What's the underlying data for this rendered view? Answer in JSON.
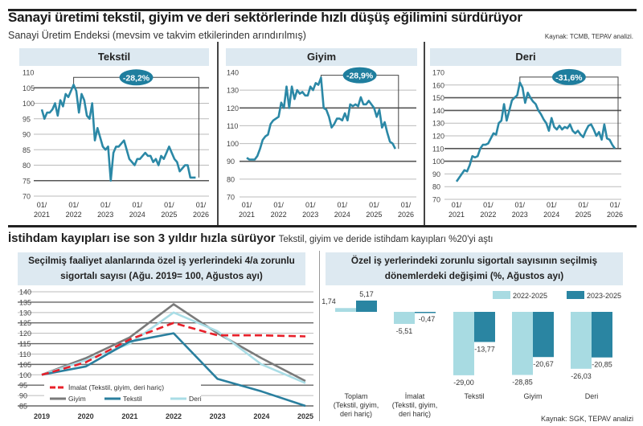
{
  "top": {
    "title": "Sanayi üretimi tekstil, giyim ve deri sektörlerinde hızlı düşüş eğilimini sürdürüyor",
    "subtitle": "Sanayi Üretim Endeksi (mevsim ve takvim etkilerinden arındırılmış)",
    "source": "Kaynak: TCMB, TEPAV analizi."
  },
  "bottom": {
    "title": "İstihdam kayıpları ise son 3 yıldır hızla sürüyor",
    "subtitle": "Tekstil, giyim ve deride istihdam kayıpları %20'yi aştı",
    "source": "Kaynak: SGK, TEPAV analizi"
  },
  "colors": {
    "line": "#2b88a6",
    "pill": "#1f7e9e",
    "light_bar": "#a8dbe2",
    "dark_bar": "#2a85a2",
    "imalat": "#e8202a",
    "giyim": "#7a7a7a",
    "tekstil": "#2a7f9e",
    "deri": "#a9dde6",
    "band": "#dde9f1"
  },
  "chart_data": [
    {
      "type": "line",
      "title": "Tekstil",
      "annotation": "-28,2%",
      "ylim": [
        70,
        110
      ],
      "yticks": [
        "110",
        "105",
        "100",
        "95",
        "90",
        "85",
        "80",
        "75",
        "70"
      ],
      "xticks": [
        [
          "01/",
          "2021"
        ],
        [
          "01/",
          "2022"
        ],
        [
          "01/",
          "2023"
        ],
        [
          "01/",
          "2024"
        ],
        [
          "01/",
          "2025"
        ],
        [
          "01/",
          "2026"
        ]
      ],
      "start": "2021-01",
      "frequency": "monthly",
      "values": [
        98,
        95,
        97,
        97,
        98,
        100,
        96,
        101,
        99,
        103,
        102,
        104,
        106,
        104,
        97,
        103,
        101,
        96,
        95,
        100,
        88,
        92,
        89,
        86,
        85,
        86,
        75,
        84,
        86,
        86,
        87,
        88,
        85,
        82,
        81,
        80,
        82,
        82,
        83,
        84,
        83,
        83,
        81,
        82,
        80,
        83,
        82,
        84,
        86,
        84,
        82,
        81,
        78,
        79,
        80,
        80,
        76,
        76,
        76
      ]
    },
    {
      "type": "line",
      "title": "Giyim",
      "annotation": "-28,9%",
      "ylim": [
        70,
        140
      ],
      "yticks": [
        "140",
        "130",
        "120",
        "110",
        "100",
        "90",
        "80",
        "70"
      ],
      "xticks": [
        [
          "01/",
          "2021"
        ],
        [
          "01/",
          "2022"
        ],
        [
          "01/",
          "2023"
        ],
        [
          "01/",
          "2024"
        ],
        [
          "01/",
          "2025"
        ],
        [
          "01/",
          "2026"
        ]
      ],
      "start": "2021-01",
      "frequency": "monthly",
      "values": [
        92,
        91,
        91,
        91,
        93,
        97,
        102,
        104,
        105,
        111,
        113,
        114,
        115,
        123,
        120,
        132,
        120,
        132,
        125,
        130,
        128,
        129,
        127,
        127,
        132,
        130,
        134,
        133,
        137,
        120,
        119,
        115,
        109,
        111,
        114,
        114,
        113,
        117,
        113,
        122,
        121,
        122,
        121,
        126,
        122,
        122,
        124,
        122,
        120,
        115,
        119,
        109,
        112,
        106,
        101,
        100,
        97
      ]
    },
    {
      "type": "line",
      "title": "Deri",
      "annotation": "-31,6%",
      "ylim": [
        70,
        170
      ],
      "yticks": [
        "170",
        "160",
        "150",
        "140",
        "130",
        "120",
        "110",
        "100",
        "90",
        "80",
        "70"
      ],
      "xticks": [
        [
          "01/",
          "2021"
        ],
        [
          "01/",
          "2022"
        ],
        [
          "01/",
          "2023"
        ],
        [
          "01/",
          "2024"
        ],
        [
          "01/",
          "2025"
        ],
        [
          "01/",
          "2026"
        ]
      ],
      "start": "2021-01",
      "frequency": "monthly",
      "values": [
        84,
        87,
        90,
        93,
        92,
        97,
        104,
        103,
        104,
        110,
        113,
        113,
        114,
        118,
        122,
        121,
        130,
        132,
        145,
        132,
        140,
        148,
        150,
        152,
        162,
        158,
        146,
        154,
        150,
        147,
        145,
        140,
        137,
        133,
        130,
        124,
        134,
        127,
        125,
        128,
        125,
        127,
        126,
        129,
        124,
        122,
        124,
        121,
        119,
        124,
        128,
        129,
        125,
        120,
        123,
        117,
        129,
        118,
        117,
        113,
        110
      ]
    },
    {
      "type": "line",
      "title": "Seçilmiş faaliyet alanlarında özel iş yerlerindeki 4/a zorunlu sigortalı sayısı (Ağu. 2019= 100, Ağustos ayı)",
      "x": [
        "2019",
        "2020",
        "2021",
        "2022",
        "2023",
        "2024",
        "2025"
      ],
      "ylim": [
        85,
        140
      ],
      "yticks": [
        "140",
        "135",
        "130",
        "125",
        "120",
        "115",
        "110",
        "105",
        "100",
        "95",
        "90",
        "85"
      ],
      "series": [
        {
          "name": "İmalat (Tekstil, giyim, deri hariç)",
          "key": "imalat",
          "dashed": true,
          "values": [
            100,
            106,
            117,
            125,
            119,
            119,
            118.5
          ]
        },
        {
          "name": "Giyim",
          "key": "giyim",
          "values": [
            100,
            108,
            118,
            134,
            120,
            108,
            97
          ]
        },
        {
          "name": "Tekstil",
          "key": "tekstil",
          "values": [
            100,
            104,
            116,
            120,
            98,
            92,
            85
          ]
        },
        {
          "name": "Deri",
          "key": "deri",
          "values": [
            100,
            107,
            115,
            130,
            121,
            105,
            96
          ]
        }
      ],
      "legend": "bottom-left"
    },
    {
      "type": "bar",
      "title": "Özel iş yerlerindeki zorunlu sigortalı sayısının seçilmiş dönemlerdeki değişimi (%, Ağustos ayı)",
      "categories": [
        [
          "Toplam",
          "(Tekstil, giyim,",
          "deri hariç)"
        ],
        [
          "İmalat",
          "(Tekstil, giyim,",
          "deri hariç)"
        ],
        [
          "Tekstil"
        ],
        [
          "Giyim"
        ],
        [
          "Deri"
        ]
      ],
      "series": [
        {
          "name": "2022-2025",
          "key": "light_bar",
          "values": [
            1.74,
            -5.51,
            -29.0,
            -28.85,
            -26.03
          ],
          "labels": [
            "1,74",
            "-5,51",
            "-29,00",
            "-28,85",
            "-26,03"
          ]
        },
        {
          "name": "2023-2025",
          "key": "dark_bar",
          "values": [
            5.17,
            -0.47,
            -13.77,
            -20.67,
            -20.85
          ],
          "labels": [
            "5,17",
            "-0,47",
            "-13,77",
            "-20,67",
            "-20,85"
          ]
        }
      ],
      "legend": "top-right"
    }
  ]
}
